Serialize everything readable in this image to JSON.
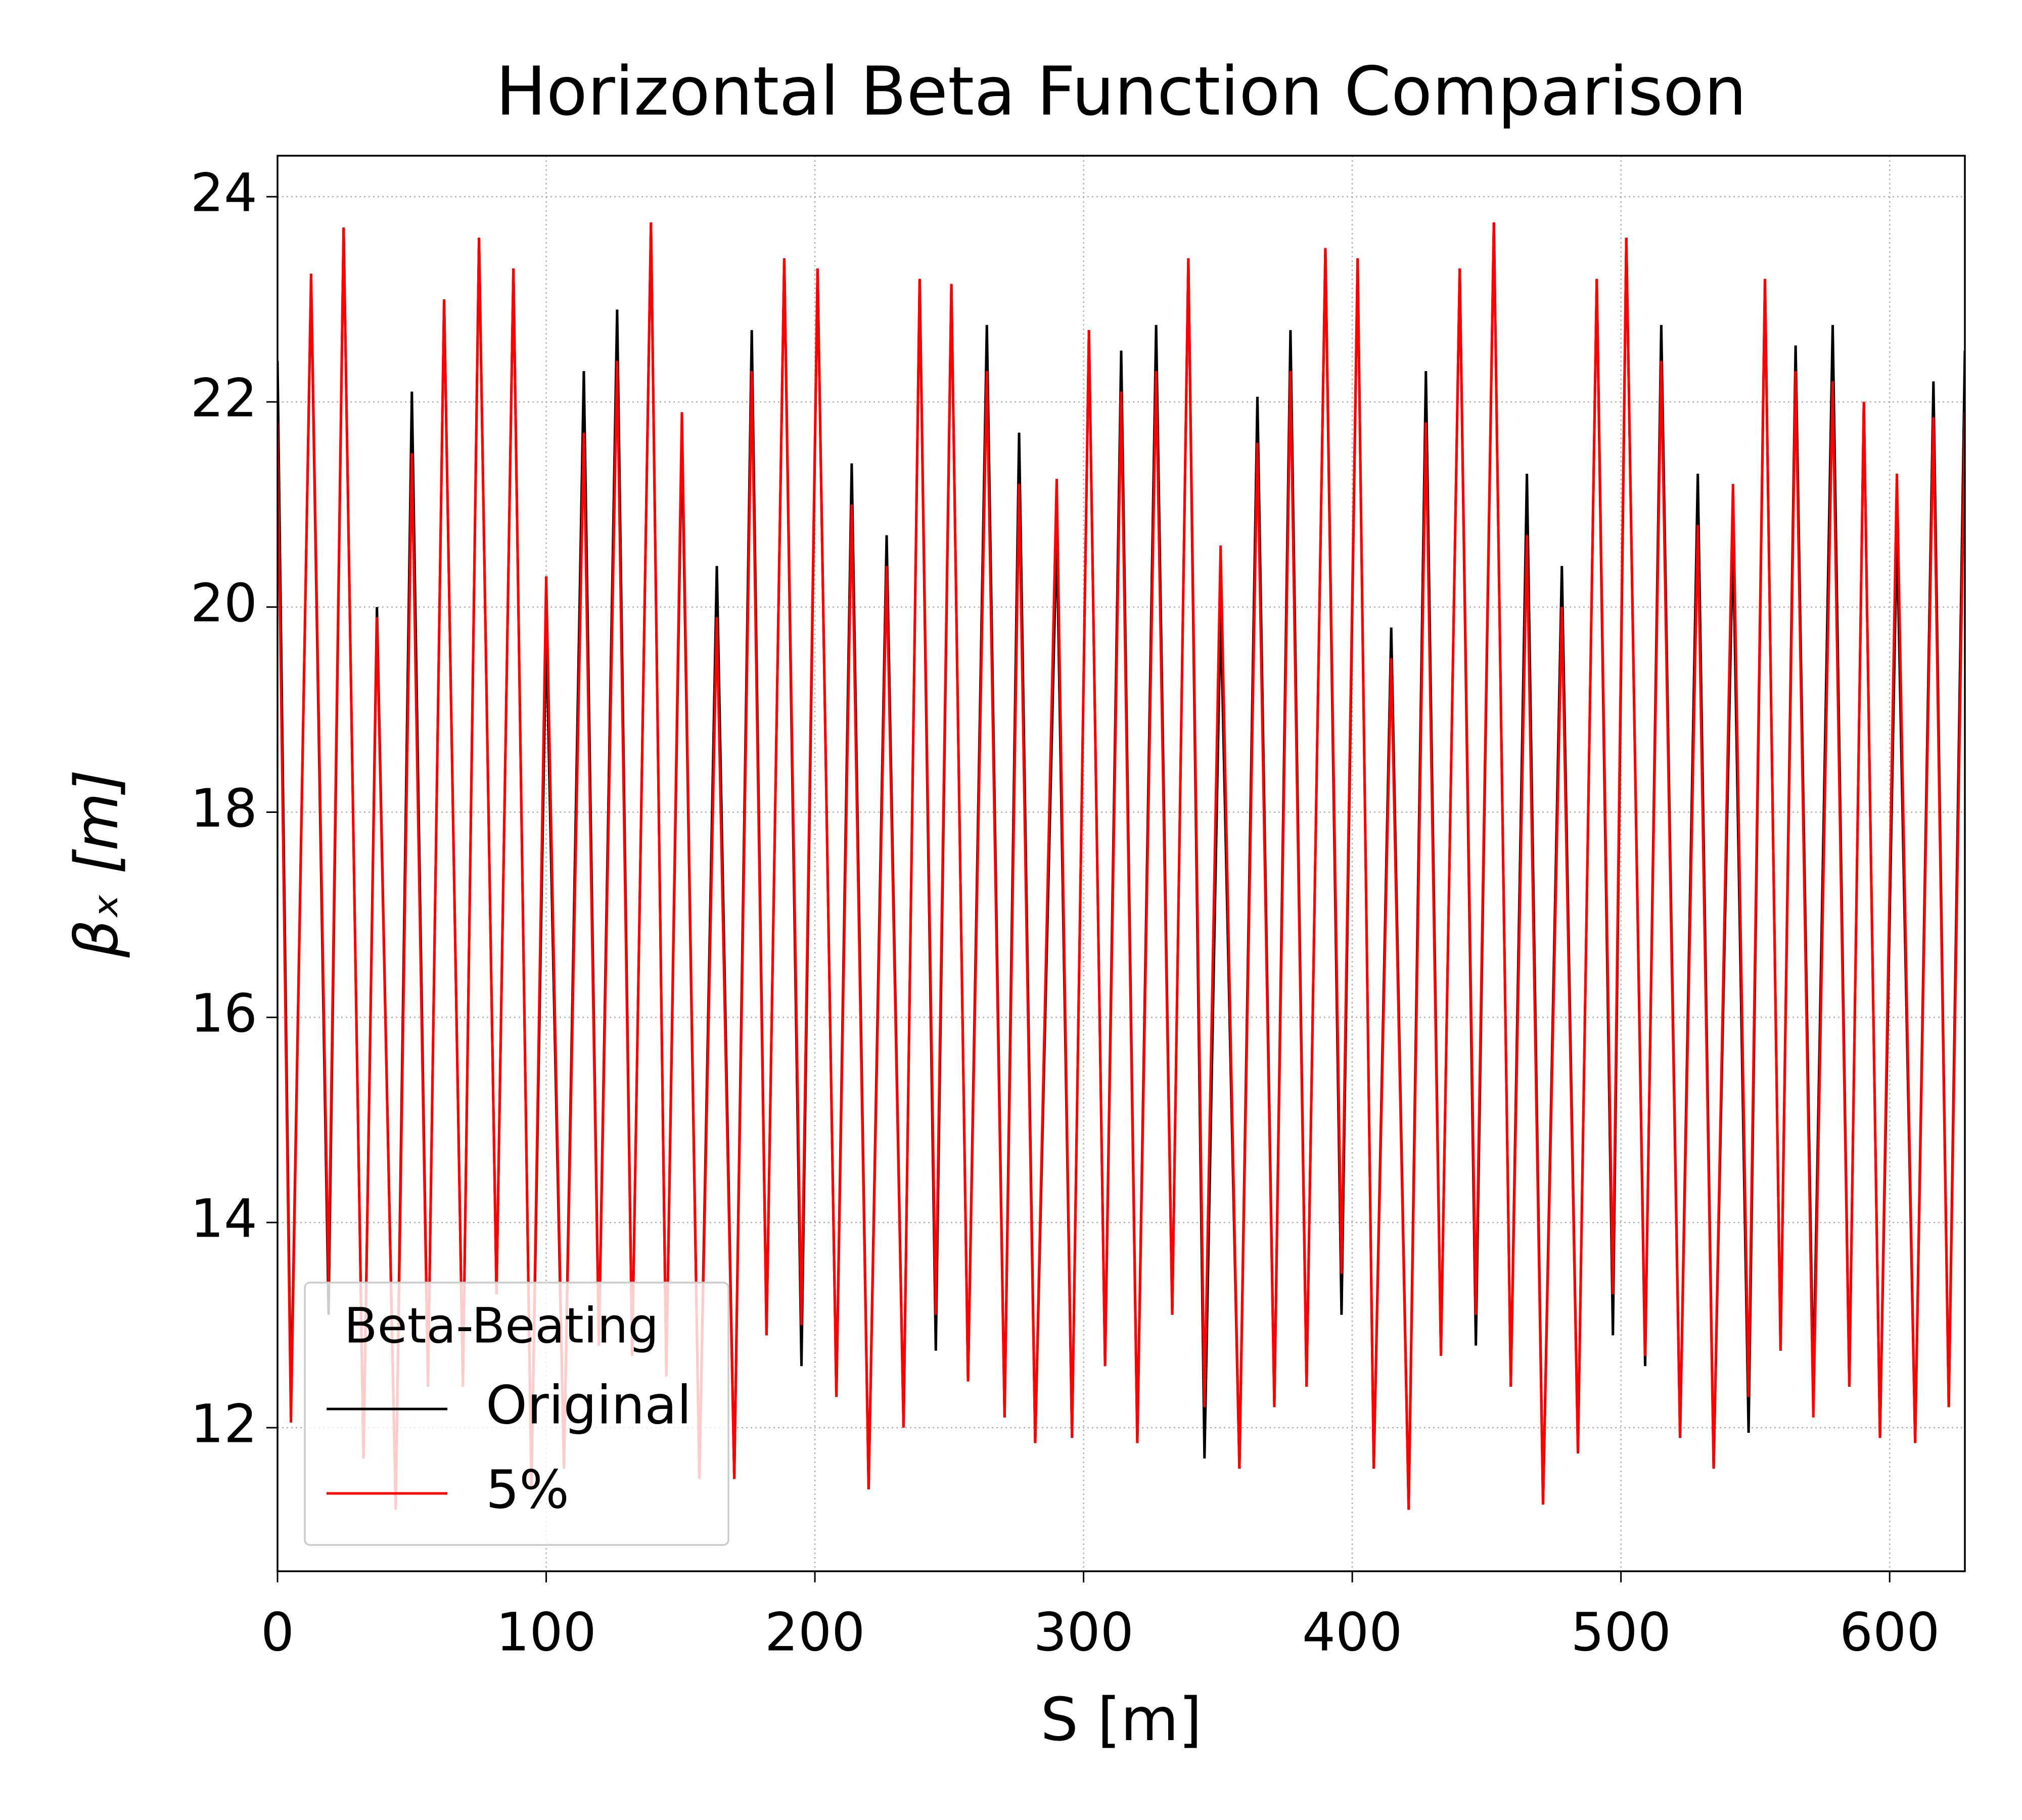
{
  "chart_data": {
    "type": "line",
    "title": "Horizontal Beta Function Comparison",
    "xlabel": "S [m]",
    "ylabel": "βₓ [m]",
    "legend_title": "Beta-Beating",
    "legend": "lower left",
    "grid": true,
    "xlim": [
      0,
      628
    ],
    "xticks": [
      0,
      100,
      200,
      300,
      400,
      500,
      600
    ],
    "ylim": [
      10.6,
      24.4
    ],
    "yticks": [
      12,
      14,
      16,
      18,
      20,
      22,
      24
    ],
    "x": [
      0,
      5,
      12.5,
      19,
      24.6,
      32,
      37,
      44,
      50,
      56,
      62,
      69,
      75,
      81.5,
      87.8,
      94.5,
      100,
      106.6,
      114,
      119.6,
      126.4,
      132,
      139,
      144.7,
      150.5,
      157,
      163.5,
      170,
      176.5,
      182,
      188.6,
      195,
      201,
      208,
      213.7,
      220,
      226.7,
      233,
      239,
      245,
      250.8,
      257,
      264,
      270.6,
      276,
      282,
      290,
      295.7,
      302,
      308,
      314,
      320,
      327,
      333,
      339,
      345,
      351,
      358,
      364.7,
      371,
      377,
      383,
      390,
      396,
      402,
      408,
      414.5,
      421,
      427.4,
      433,
      440,
      446,
      452.7,
      459,
      465,
      471,
      478,
      484,
      491,
      497,
      502,
      509,
      515,
      522,
      528.6,
      534.5,
      541.7,
      547.5,
      553.6,
      559.4,
      565,
      571.6,
      578.8,
      585,
      590.4,
      596.4,
      602.7,
      609.5,
      616.3,
      622,
      628
    ],
    "series": [
      {
        "name": "Original",
        "color": "#000000",
        "values": [
          22.4,
          12.2,
          23.2,
          13.1,
          23.7,
          11.7,
          20.0,
          11.2,
          22.1,
          12.4,
          23.0,
          12.4,
          23.6,
          13.3,
          23.3,
          11.4,
          19.8,
          11.6,
          22.3,
          12.8,
          22.9,
          12.7,
          23.75,
          12.5,
          21.7,
          11.5,
          20.4,
          11.5,
          22.7,
          12.9,
          23.4,
          12.6,
          23.3,
          12.3,
          21.4,
          11.4,
          20.7,
          12.0,
          23.2,
          12.75,
          23.15,
          12.45,
          22.75,
          12.1,
          21.7,
          11.85,
          20.75,
          11.9,
          22.7,
          12.6,
          22.5,
          11.85,
          22.75,
          13.1,
          23.4,
          11.7,
          20.0,
          11.6,
          22.05,
          12.2,
          22.7,
          12.4,
          23.5,
          13.1,
          23.4,
          11.6,
          19.8,
          11.2,
          22.3,
          12.7,
          23.3,
          12.8,
          23.75,
          12.4,
          21.3,
          11.25,
          20.4,
          11.75,
          23.2,
          12.9,
          23.6,
          12.6,
          22.75,
          11.9,
          21.3,
          11.6,
          20.7,
          11.95,
          23.2,
          12.75,
          22.55,
          12.4,
          22.75,
          12.4,
          22.0,
          11.9,
          20.75,
          11.85,
          22.2,
          12.2,
          22.5
        ]
      },
      {
        "name": "5%",
        "color": "#ff0000",
        "values": [
          21.8,
          12.05,
          23.25,
          13.4,
          23.7,
          11.7,
          19.9,
          11.2,
          21.5,
          12.4,
          23.0,
          12.4,
          23.6,
          13.3,
          23.3,
          11.4,
          20.3,
          11.6,
          21.7,
          12.8,
          22.4,
          12.7,
          23.75,
          12.5,
          21.9,
          11.5,
          19.9,
          11.5,
          22.3,
          12.9,
          23.4,
          13.0,
          23.3,
          12.3,
          21.0,
          11.4,
          20.4,
          12.0,
          23.2,
          13.1,
          23.15,
          12.45,
          22.3,
          12.1,
          21.2,
          11.85,
          21.25,
          11.9,
          22.7,
          12.6,
          22.1,
          11.85,
          22.3,
          13.1,
          23.4,
          12.2,
          20.6,
          11.6,
          21.6,
          12.2,
          22.3,
          12.4,
          23.5,
          13.5,
          23.4,
          11.6,
          19.5,
          11.2,
          21.8,
          12.7,
          23.3,
          13.1,
          23.75,
          12.4,
          20.7,
          11.25,
          20.0,
          11.75,
          23.2,
          13.3,
          23.6,
          12.7,
          22.4,
          11.9,
          20.8,
          11.6,
          21.2,
          12.3,
          23.2,
          12.75,
          22.3,
          12.1,
          22.2,
          12.4,
          22.0,
          11.9,
          21.3,
          11.85,
          21.85,
          12.2,
          21.9
        ]
      }
    ]
  }
}
